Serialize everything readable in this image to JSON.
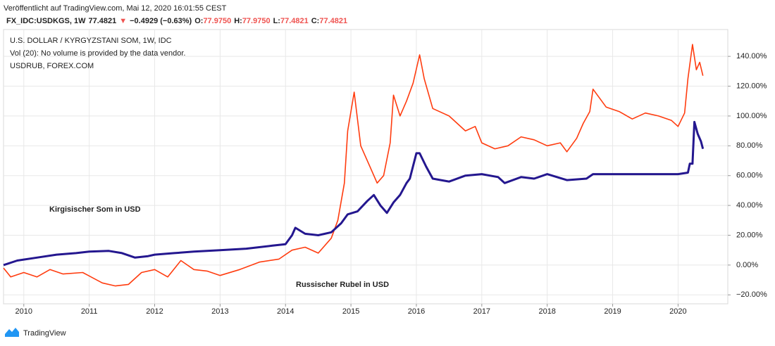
{
  "header": {
    "published": "Veröffentlicht auf TradingView.com, Mai 12, 2020 16:01:55 CEST",
    "symbol": "FX_IDC:USDKGS, 1W",
    "last": "77.4821",
    "arrow": "▼",
    "change": "−0.4929 (−0.63%)",
    "ohlc": [
      {
        "label": "O:",
        "value": "77.9750"
      },
      {
        "label": "H:",
        "value": "77.9750"
      },
      {
        "label": "L:",
        "value": "77.4821"
      },
      {
        "label": "C:",
        "value": "77.4821"
      }
    ]
  },
  "chart_data": {
    "type": "line",
    "legend_lines": [
      "U.S. DOLLAR / KYRGYZSTANI SOM, 1W, IDC",
      "Vol (20): No volume is provided by the data vendor.",
      "USDRUB, FOREX.COM"
    ],
    "annotations": [
      "Kirgisischer Som in USD",
      "Russischer Rubel in USD"
    ],
    "grid": true,
    "xlim": [
      2009.69,
      2020.76
    ],
    "xticks": [
      2010,
      2011,
      2012,
      2013,
      2014,
      2015,
      2016,
      2017,
      2018,
      2019,
      2020
    ],
    "ylim": [
      -26,
      158
    ],
    "yticks": [
      {
        "value": -20,
        "label": "−20.00%"
      },
      {
        "value": 0,
        "label": "0.00%"
      },
      {
        "value": 20,
        "label": "20.00%"
      },
      {
        "value": 40,
        "label": "40.00%"
      },
      {
        "value": 60,
        "label": "60.00%"
      },
      {
        "value": 80,
        "label": "80.00%"
      },
      {
        "value": 100,
        "label": "100.00%"
      },
      {
        "value": 120,
        "label": "120.00%"
      },
      {
        "value": 140,
        "label": "140.00%"
      }
    ],
    "series": [
      {
        "name": "Kirgisischer Som in USD",
        "color": "#24178f",
        "width": 3,
        "x": [
          2009.69,
          2009.9,
          2010.2,
          2010.5,
          2010.8,
          2011.0,
          2011.3,
          2011.5,
          2011.7,
          2011.9,
          2012.0,
          2012.3,
          2012.6,
          2013.0,
          2013.4,
          2013.8,
          2014.0,
          2014.1,
          2014.15,
          2014.3,
          2014.5,
          2014.7,
          2014.85,
          2014.95,
          2015.1,
          2015.25,
          2015.35,
          2015.45,
          2015.55,
          2015.65,
          2015.75,
          2015.85,
          2015.9,
          2016.0,
          2016.05,
          2016.15,
          2016.25,
          2016.5,
          2016.75,
          2017.0,
          2017.25,
          2017.35,
          2017.6,
          2017.8,
          2018.0,
          2018.3,
          2018.6,
          2018.7,
          2019.0,
          2019.5,
          2020.0,
          2020.15,
          2020.18,
          2020.22,
          2020.25,
          2020.3,
          2020.35,
          2020.38
        ],
        "values": [
          0,
          3,
          5,
          7,
          8,
          9,
          9.5,
          8,
          5,
          6,
          7,
          8,
          9,
          10,
          11,
          13,
          14,
          20,
          25,
          21,
          20,
          22,
          28,
          34,
          36,
          43,
          47,
          40,
          35,
          42,
          47,
          55,
          58,
          75,
          75,
          66,
          58,
          56,
          60,
          61,
          59,
          55,
          59,
          58,
          61,
          57,
          58,
          61,
          61,
          61,
          61,
          62,
          68,
          68,
          96,
          88,
          83,
          78
        ]
      },
      {
        "name": "Russischer Rubel in USD",
        "color": "#ff3c0f",
        "width": 1.6,
        "x": [
          2009.69,
          2009.8,
          2010.0,
          2010.2,
          2010.4,
          2010.6,
          2010.9,
          2011.2,
          2011.4,
          2011.6,
          2011.8,
          2012.0,
          2012.2,
          2012.4,
          2012.6,
          2012.8,
          2013.0,
          2013.3,
          2013.6,
          2013.9,
          2014.1,
          2014.3,
          2014.5,
          2014.7,
          2014.8,
          2014.9,
          2014.95,
          2015.05,
          2015.15,
          2015.3,
          2015.4,
          2015.5,
          2015.6,
          2015.65,
          2015.75,
          2015.85,
          2015.95,
          2016.05,
          2016.12,
          2016.25,
          2016.5,
          2016.75,
          2016.9,
          2017.0,
          2017.2,
          2017.4,
          2017.6,
          2017.8,
          2018.0,
          2018.2,
          2018.3,
          2018.45,
          2018.55,
          2018.65,
          2018.7,
          2018.9,
          2019.1,
          2019.3,
          2019.5,
          2019.7,
          2019.9,
          2020.0,
          2020.1,
          2020.15,
          2020.22,
          2020.28,
          2020.33,
          2020.38
        ],
        "values": [
          -2,
          -8,
          -5,
          -8,
          -3,
          -6,
          -5,
          -12,
          -14,
          -13,
          -5,
          -3,
          -8,
          3,
          -3,
          -4,
          -7,
          -3,
          2,
          4,
          10,
          12,
          8,
          18,
          30,
          55,
          90,
          116,
          80,
          65,
          55,
          60,
          82,
          114,
          100,
          110,
          122,
          141,
          125,
          105,
          100,
          90,
          93,
          82,
          78,
          80,
          86,
          84,
          80,
          82,
          76,
          85,
          95,
          103,
          118,
          106,
          103,
          98,
          102,
          100,
          97,
          93,
          102,
          125,
          148,
          131,
          136,
          127
        ]
      }
    ]
  },
  "footer": {
    "brand": "TradingView"
  }
}
